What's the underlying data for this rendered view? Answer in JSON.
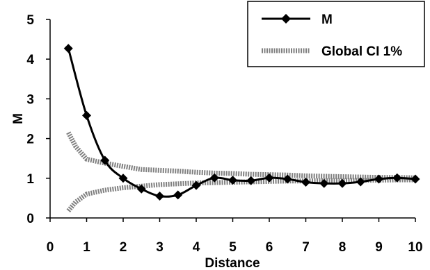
{
  "chart_data": {
    "type": "line",
    "title": "",
    "xlabel": "Distance",
    "ylabel": "M",
    "xlim": [
      0,
      10
    ],
    "ylim": [
      0,
      5
    ],
    "xticks": [
      "0",
      "1",
      "2",
      "3",
      "4",
      "5",
      "6",
      "7",
      "8",
      "9",
      "10"
    ],
    "yticks": [
      "0",
      "1",
      "2",
      "3",
      "4",
      "5"
    ],
    "grid": false,
    "legend_position": "top-right",
    "series": [
      {
        "name": "M",
        "color": "#000000",
        "marker": "diamond",
        "points": [
          [
            0.5,
            4.27
          ],
          [
            1.0,
            2.58
          ],
          [
            1.5,
            1.45
          ],
          [
            2.0,
            1.0
          ],
          [
            2.5,
            0.73
          ],
          [
            3.0,
            0.55
          ],
          [
            3.5,
            0.58
          ],
          [
            4.0,
            0.82
          ],
          [
            4.5,
            1.01
          ],
          [
            5.0,
            0.95
          ],
          [
            5.5,
            0.94
          ],
          [
            6.0,
            1.01
          ],
          [
            6.5,
            0.98
          ],
          [
            7.0,
            0.9
          ],
          [
            7.5,
            0.87
          ],
          [
            8.0,
            0.87
          ],
          [
            8.5,
            0.91
          ],
          [
            9.0,
            0.98
          ],
          [
            9.5,
            1.01
          ],
          [
            10.0,
            0.98
          ]
        ]
      },
      {
        "name": "Global CI 1%",
        "color": "#808080",
        "marker": "none",
        "upper": [
          [
            0.5,
            2.15
          ],
          [
            0.7,
            1.8
          ],
          [
            1.0,
            1.48
          ],
          [
            1.5,
            1.38
          ],
          [
            2.0,
            1.3
          ],
          [
            2.5,
            1.22
          ],
          [
            3.0,
            1.2
          ],
          [
            3.5,
            1.18
          ],
          [
            4.0,
            1.15
          ],
          [
            4.5,
            1.13
          ],
          [
            5.0,
            1.12
          ],
          [
            5.5,
            1.1
          ],
          [
            6.0,
            1.09
          ],
          [
            6.5,
            1.08
          ],
          [
            7.0,
            1.06
          ],
          [
            7.5,
            1.05
          ],
          [
            8.0,
            1.04
          ],
          [
            8.5,
            1.03
          ],
          [
            9.0,
            1.02
          ],
          [
            9.5,
            1.02
          ],
          [
            10.0,
            1.01
          ]
        ],
        "lower": [
          [
            0.5,
            0.18
          ],
          [
            0.7,
            0.4
          ],
          [
            1.0,
            0.6
          ],
          [
            1.5,
            0.7
          ],
          [
            2.0,
            0.76
          ],
          [
            2.5,
            0.8
          ],
          [
            3.0,
            0.84
          ],
          [
            3.5,
            0.86
          ],
          [
            4.0,
            0.88
          ],
          [
            4.5,
            0.89
          ],
          [
            5.0,
            0.9
          ],
          [
            5.5,
            0.91
          ],
          [
            6.0,
            0.92
          ],
          [
            6.5,
            0.93
          ],
          [
            7.0,
            0.93
          ],
          [
            7.5,
            0.94
          ],
          [
            8.0,
            0.94
          ],
          [
            8.5,
            0.95
          ],
          [
            9.0,
            0.95
          ],
          [
            9.5,
            0.96
          ],
          [
            10.0,
            0.96
          ]
        ]
      }
    ]
  }
}
